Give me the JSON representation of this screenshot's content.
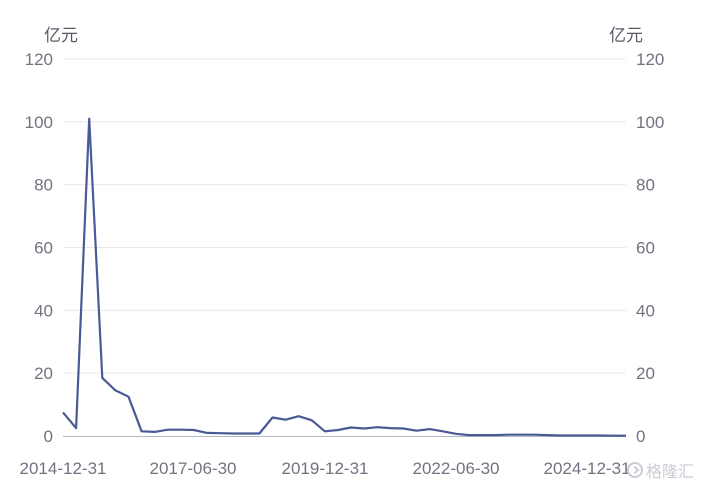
{
  "units": {
    "left": "亿元",
    "right": "亿元"
  },
  "watermark": "格隆汇",
  "colors": {
    "line": "#4a5a96",
    "grid": "#e8e8ec",
    "axis": "#b5b8c0",
    "text": "#70747f"
  },
  "chart_data": {
    "type": "line",
    "title": "",
    "xlabel": "",
    "ylabel": "亿元",
    "y2label": "亿元",
    "ylim": [
      0,
      120
    ],
    "yticks": [
      0,
      20,
      40,
      60,
      80,
      100,
      120
    ],
    "xtick_labels": [
      "2014-12-31",
      "2017-06-30",
      "2019-12-31",
      "2022-06-30",
      "2024-12-31"
    ],
    "grid": true,
    "series": [
      {
        "name": "",
        "values": [
          7.5,
          2.5,
          101,
          18.5,
          14.5,
          12.5,
          1.5,
          1.3,
          2,
          2,
          1.9,
          1,
          0.9,
          0.8,
          0.8,
          0.8,
          5.9,
          5.2,
          6.3,
          5,
          1.5,
          1.9,
          2.7,
          2.4,
          2.8,
          2.5,
          2.4,
          1.7,
          2.2,
          1.5,
          0.7,
          0.3,
          0.3,
          0.3,
          0.4,
          0.4,
          0.4,
          0.3,
          0.15,
          0.15,
          0.15,
          0.15,
          0.1,
          0.1
        ]
      }
    ]
  }
}
